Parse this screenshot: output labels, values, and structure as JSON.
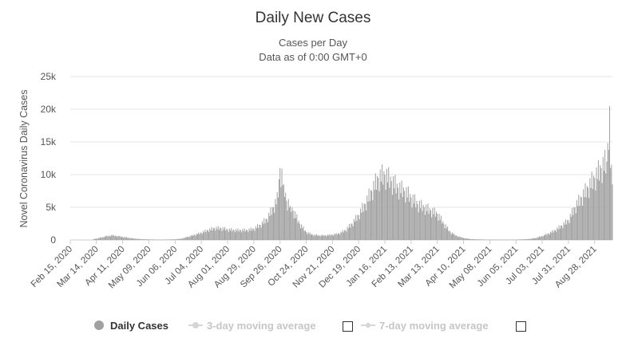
{
  "chart_data": {
    "type": "bar",
    "title": "Daily New Cases",
    "subtitle_lines": [
      "Cases per Day",
      "Data as of 0:00 GMT+0"
    ],
    "ylabel": "Novel Coronavirus Daily Cases",
    "xlabel": "",
    "ylim": [
      0,
      25000
    ],
    "y_ticks": [
      0,
      5000,
      10000,
      15000,
      20000,
      25000
    ],
    "y_tick_labels": [
      "0",
      "5k",
      "10k",
      "15k",
      "20k",
      "25k"
    ],
    "grid": true,
    "x_range": [
      "2020-02-15",
      "2021-09-16"
    ],
    "x_ticks": [
      "2020-02-15",
      "2020-03-14",
      "2020-04-11",
      "2020-05-09",
      "2020-06-06",
      "2020-07-04",
      "2020-08-01",
      "2020-08-29",
      "2020-09-26",
      "2020-10-24",
      "2020-11-21",
      "2020-12-19",
      "2021-01-16",
      "2021-02-13",
      "2021-03-13",
      "2021-04-10",
      "2021-05-08",
      "2021-06-05",
      "2021-07-03",
      "2021-07-31",
      "2021-08-28"
    ],
    "x_tick_labels": [
      "Feb 15, 2020",
      "Mar 14, 2020",
      "Apr 11, 2020",
      "May 09, 2020",
      "Jun 06, 2020",
      "Jul 04, 2020",
      "Aug 01, 2020",
      "Aug 29, 2020",
      "Sep 26, 2020",
      "Oct 24, 2020",
      "Nov 21, 2020",
      "Dec 19, 2020",
      "Jan 16, 2021",
      "Feb 13, 2021",
      "Mar 13, 2021",
      "Apr 10, 2021",
      "May 08, 2021",
      "Jun 05, 2021",
      "Jul 03, 2021",
      "Jul 31, 2021",
      "Aug 28, 2021"
    ],
    "series": [
      {
        "name": "Daily Cases",
        "color": "#a0a0a0",
        "points": [
          [
            "2020-03-10",
            100
          ],
          [
            "2020-03-17",
            300
          ],
          [
            "2020-03-24",
            550
          ],
          [
            "2020-03-31",
            700
          ],
          [
            "2020-04-07",
            550
          ],
          [
            "2020-04-14",
            400
          ],
          [
            "2020-04-21",
            250
          ],
          [
            "2020-04-28",
            150
          ],
          [
            "2020-05-05",
            100
          ],
          [
            "2020-05-20",
            50
          ],
          [
            "2020-06-06",
            100
          ],
          [
            "2020-06-13",
            200
          ],
          [
            "2020-06-20",
            500
          ],
          [
            "2020-06-27",
            800
          ],
          [
            "2020-07-04",
            1100
          ],
          [
            "2020-07-11",
            1500
          ],
          [
            "2020-07-18",
            1800
          ],
          [
            "2020-07-25",
            1800
          ],
          [
            "2020-08-01",
            1600
          ],
          [
            "2020-08-08",
            1500
          ],
          [
            "2020-08-15",
            1500
          ],
          [
            "2020-08-22",
            1500
          ],
          [
            "2020-08-29",
            1700
          ],
          [
            "2020-09-05",
            2300
          ],
          [
            "2020-09-12",
            3200
          ],
          [
            "2020-09-19",
            5000
          ],
          [
            "2020-09-24",
            6500
          ],
          [
            "2020-09-26",
            11000
          ],
          [
            "2020-09-30",
            8500
          ],
          [
            "2020-10-03",
            6000
          ],
          [
            "2020-10-07",
            5200
          ],
          [
            "2020-10-10",
            4500
          ],
          [
            "2020-10-17",
            2500
          ],
          [
            "2020-10-24",
            1200
          ],
          [
            "2020-10-31",
            800
          ],
          [
            "2020-11-07",
            700
          ],
          [
            "2020-11-14",
            700
          ],
          [
            "2020-11-21",
            800
          ],
          [
            "2020-11-28",
            1000
          ],
          [
            "2020-12-05",
            1500
          ],
          [
            "2020-12-12",
            2500
          ],
          [
            "2020-12-19",
            3800
          ],
          [
            "2020-12-26",
            5500
          ],
          [
            "2021-01-02",
            7500
          ],
          [
            "2021-01-09",
            9500
          ],
          [
            "2021-01-16",
            10000
          ],
          [
            "2021-01-23",
            9000
          ],
          [
            "2021-01-30",
            8000
          ],
          [
            "2021-02-06",
            7500
          ],
          [
            "2021-02-13",
            6500
          ],
          [
            "2021-02-20",
            5500
          ],
          [
            "2021-02-27",
            5000
          ],
          [
            "2021-03-06",
            4500
          ],
          [
            "2021-03-13",
            4000
          ],
          [
            "2021-03-20",
            2500
          ],
          [
            "2021-03-27",
            1200
          ],
          [
            "2021-04-03",
            600
          ],
          [
            "2021-04-10",
            300
          ],
          [
            "2021-04-17",
            150
          ],
          [
            "2021-04-24",
            100
          ],
          [
            "2021-05-08",
            50
          ],
          [
            "2021-06-05",
            50
          ],
          [
            "2021-06-19",
            150
          ],
          [
            "2021-06-26",
            300
          ],
          [
            "2021-07-03",
            600
          ],
          [
            "2021-07-10",
            1000
          ],
          [
            "2021-07-17",
            1500
          ],
          [
            "2021-07-24",
            2200
          ],
          [
            "2021-07-31",
            3000
          ],
          [
            "2021-08-07",
            5000
          ],
          [
            "2021-08-14",
            6500
          ],
          [
            "2021-08-21",
            8000
          ],
          [
            "2021-08-28",
            9500
          ],
          [
            "2021-09-04",
            11000
          ],
          [
            "2021-09-10",
            12000
          ],
          [
            "2021-09-13",
            20500
          ],
          [
            "2021-09-14",
            11000
          ],
          [
            "2021-09-16",
            8500
          ]
        ]
      }
    ],
    "legend": {
      "placement": "bottom",
      "items": [
        {
          "label": "Daily Cases",
          "active": true,
          "color": "#a0a0a0",
          "text_color": "#333333"
        },
        {
          "label": "3-day moving average",
          "active": false,
          "color": "#d6d6d6",
          "text_color": "#c6c6c6"
        },
        {
          "label": "7-day moving average",
          "active": false,
          "color": "#d6d6d6",
          "text_color": "#c6c6c6"
        }
      ]
    }
  }
}
